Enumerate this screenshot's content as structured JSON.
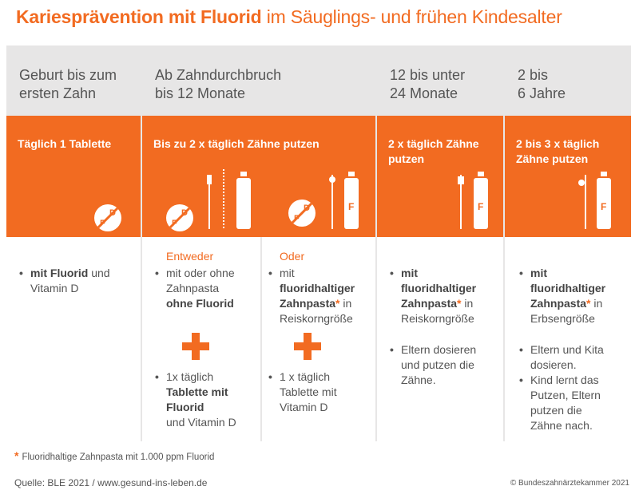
{
  "title": {
    "bold": "Kariesprävention mit Fluorid",
    "rest": " im Säuglings- und frühen Kindesalter"
  },
  "columns": {
    "c1": {
      "head_line1": "Geburt bis zum",
      "head_line2": "ersten Zahn",
      "recommendation": "Täglich 1 Tablette",
      "bullet1_bold": "mit Fluorid",
      "bullet1_rest": " und",
      "bullet1_line2": "Vitamin D"
    },
    "c2": {
      "head_line1": "Ab Zahndurchbruch",
      "head_line2": "bis 12 Monate",
      "recommendation": "Bis zu 2 x täglich Zähne putzen",
      "alt_label": "Entweder",
      "b1_line1": "mit oder ohne",
      "b1_line2": "Zahnpasta",
      "b1_line3_bold": "ohne Fluorid",
      "b2_line1": "1x täglich",
      "b2_line2_bold": "Tablette mit",
      "b2_line3_bold": "Fluorid",
      "b2_line4": "und Vitamin D"
    },
    "c3": {
      "alt_label": "Oder",
      "b1_line1": "mit",
      "b1_line2_bold": "fluoridhaltiger",
      "b1_line3_bold": "Zahnpasta",
      "b1_line3_ast": "*",
      "b1_line3_rest": " in",
      "b1_line4": "Reiskorngröße",
      "b2_line1": "1 x täglich",
      "b2_line2": "Tablette mit",
      "b2_line3": "Vitamin D"
    },
    "c4": {
      "head_line1": "12 bis unter",
      "head_line2": "24 Monate",
      "rec_line1": "2 x täglich Zähne",
      "rec_line2": "putzen",
      "b1_line1_bold": "mit",
      "b1_line2_bold": "fluoridhaltiger",
      "b1_line3_bold": "Zahnpasta",
      "b1_line3_ast": "*",
      "b1_line3_rest": " in",
      "b1_line4": "Reiskorngröße",
      "b2_line1": "Eltern dosieren",
      "b2_line2": "und putzen die",
      "b2_line3": "Zähne."
    },
    "c5": {
      "head_line1": "2 bis",
      "head_line2": "6 Jahre",
      "rec_line1": "2 bis 3 x täglich",
      "rec_line2": "Zähne putzen",
      "b1_line1_bold": "mit",
      "b1_line2_bold": "fluoridhaltiger",
      "b1_line3_bold": "Zahnpasta",
      "b1_line3_ast": "*",
      "b1_line3_rest": " in",
      "b1_line4": "Erbsengröße",
      "b2_line1": "Eltern und Kita",
      "b2_line2": "dosieren.",
      "b3_line1": "Kind lernt das",
      "b3_line2": "Putzen, Eltern",
      "b3_line3": "putzen die",
      "b3_line4": "Zähne nach."
    }
  },
  "icons": {
    "tablet_letter_d": "D",
    "tablet_letter_f": "F",
    "tube_letter": "F",
    "tablet_icon": "fluoride-tablet-icon",
    "toothbrush_icon": "toothbrush-icon",
    "toothpaste_icon": "toothpaste-tube-icon"
  },
  "bullet_char": "•",
  "footnote": {
    "asterisk": "*",
    "text": "Fluoridhaltige Zahnpasta mit 1.000 ppm Fluorid"
  },
  "source": "Quelle: BLE 2021 / www.gesund-ins-leben.de",
  "copyright": "© Bundeszahnärztekammer 2021",
  "colors": {
    "accent": "#f26b21",
    "panel": "#e7e6e6"
  }
}
